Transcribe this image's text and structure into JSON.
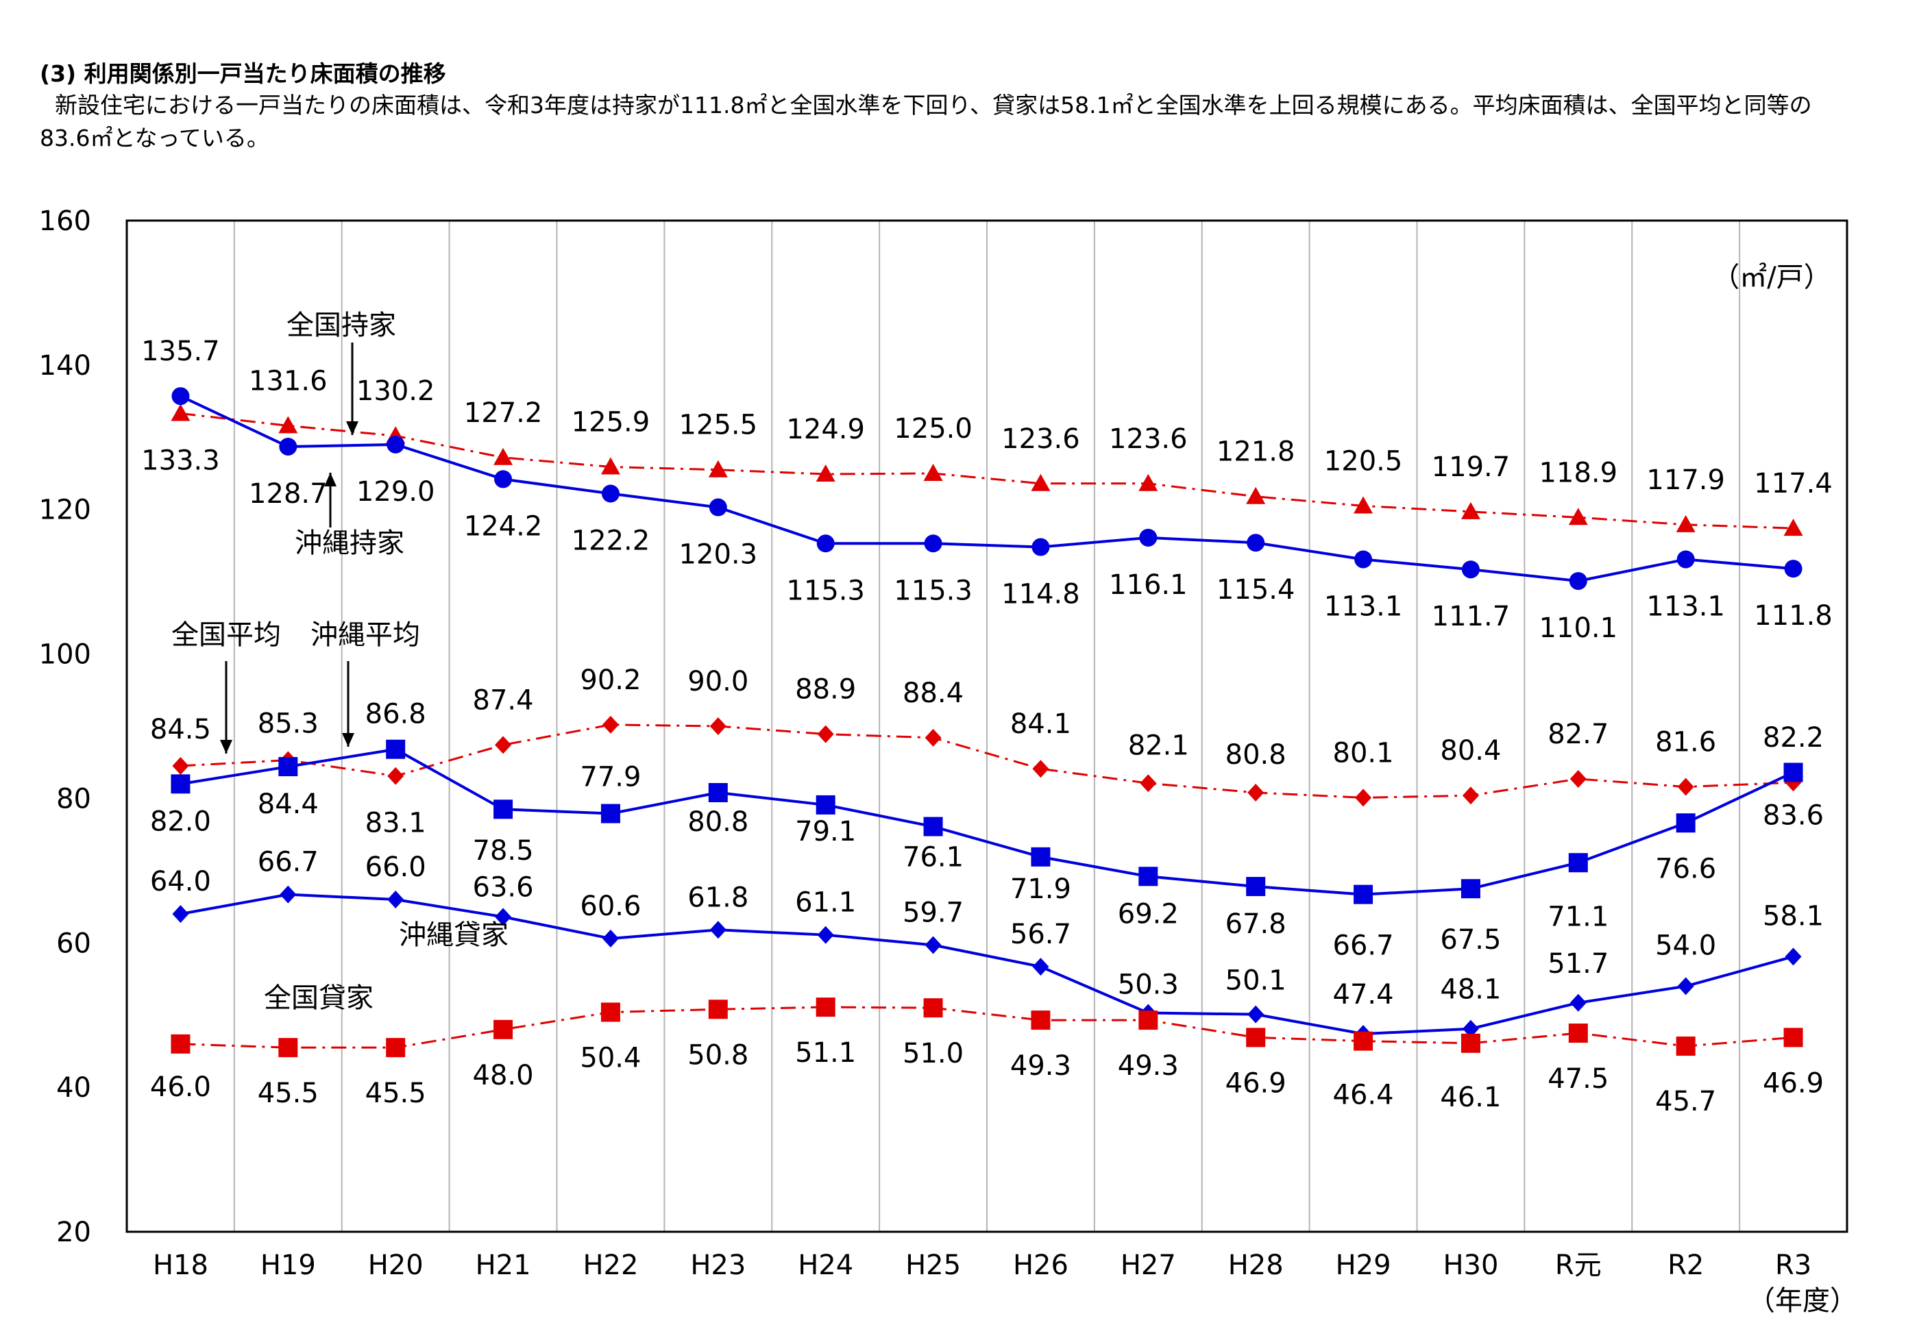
{
  "header": {
    "section_title": "(3) 利用関係別一戸当たり床面積の推移",
    "intro": "新設住宅における一戸当たりの床面積は、令和3年度は持家が111.8㎡と全国水準を下回り、貸家は58.1㎡と全国水準を上回る規模にある。平均床面積は、全国平均と同等の83.6㎡となっている。"
  },
  "chart_data": {
    "type": "line",
    "title": "",
    "unit_label": "（㎡/戸）",
    "xlabel": "（年度）",
    "ylabel": "",
    "categories": [
      "H18",
      "H19",
      "H20",
      "H21",
      "H22",
      "H23",
      "H24",
      "H25",
      "H26",
      "H27",
      "H28",
      "H29",
      "H30",
      "R元",
      "R2",
      "R3"
    ],
    "ylim": [
      20,
      160
    ],
    "yticks": [
      20,
      40,
      60,
      80,
      100,
      120,
      140,
      160
    ],
    "grid": "vertical",
    "series": [
      {
        "name": "全国持家",
        "color": "#e00000",
        "style": "dash-dot",
        "marker": "triangle",
        "values": [
          133.3,
          131.6,
          130.2,
          127.2,
          125.9,
          125.5,
          124.9,
          125.0,
          123.6,
          123.6,
          121.8,
          120.5,
          119.7,
          118.9,
          117.9,
          117.4
        ]
      },
      {
        "name": "沖縄持家",
        "color": "#0000dd",
        "style": "solid",
        "marker": "circle",
        "values": [
          135.7,
          128.7,
          129.0,
          124.2,
          122.2,
          120.3,
          115.3,
          115.3,
          114.8,
          116.1,
          115.4,
          113.1,
          111.7,
          110.1,
          113.1,
          111.8
        ]
      },
      {
        "name": "全国平均",
        "color": "#e00000",
        "style": "dash-dot",
        "marker": "diamond",
        "values": [
          84.5,
          85.3,
          83.1,
          87.4,
          90.2,
          90.0,
          88.9,
          88.4,
          84.1,
          82.1,
          80.8,
          80.1,
          80.4,
          82.7,
          81.6,
          82.2
        ]
      },
      {
        "name": "沖縄平均",
        "color": "#0000dd",
        "style": "solid",
        "marker": "square",
        "values": [
          82.0,
          84.4,
          86.8,
          78.5,
          77.9,
          80.8,
          79.1,
          76.1,
          71.9,
          69.2,
          67.8,
          66.7,
          67.5,
          71.1,
          76.6,
          83.6
        ]
      },
      {
        "name": "沖縄貸家",
        "color": "#0000dd",
        "style": "solid",
        "marker": "diamond",
        "values": [
          64.0,
          66.7,
          66.0,
          63.6,
          60.6,
          61.8,
          61.1,
          59.7,
          56.7,
          50.3,
          50.1,
          47.4,
          48.1,
          51.7,
          54.0,
          58.1
        ]
      },
      {
        "name": "全国貸家",
        "color": "#e00000",
        "style": "dash-dot",
        "marker": "square",
        "values": [
          46.0,
          45.5,
          45.5,
          48.0,
          50.4,
          50.8,
          51.1,
          51.0,
          49.3,
          49.3,
          46.9,
          46.4,
          46.1,
          47.5,
          45.7,
          46.9
        ]
      }
    ]
  }
}
